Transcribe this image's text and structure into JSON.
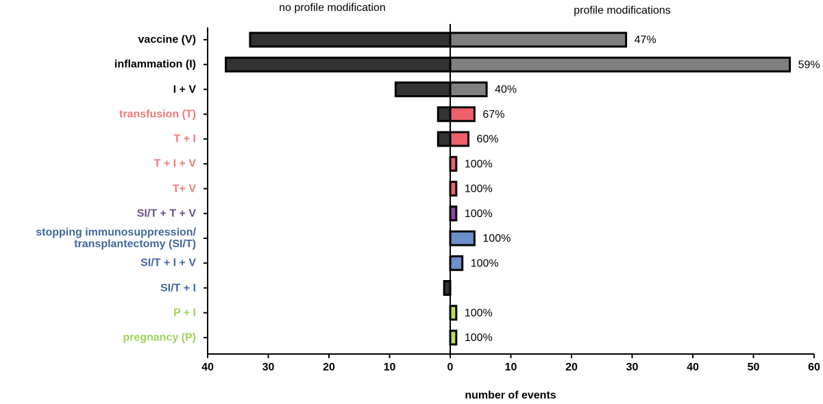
{
  "chart_data": {
    "type": "diverging_bar",
    "xlabel": "number of events",
    "categories": [
      "vaccine (V)",
      "inflammation (I)",
      "I + V",
      "transfusion (T)",
      "T + I",
      "T + I + V",
      "T+ V",
      "SI/T + T + V",
      "stopping immunosuppression/\ntransplantectomy (SI/T)",
      "SI/T + I + V",
      "SI/T + I",
      "P + I",
      "pregnancy (P)"
    ],
    "label_colors": [
      "#000000",
      "#000000",
      "#000000",
      "#f07a7a",
      "#f07a7a",
      "#f07a7a",
      "#f07a7a",
      "#6b4f8c",
      "#41689c",
      "#41689c",
      "#41689c",
      "#9fd25a",
      "#9fd25a"
    ],
    "series": [
      {
        "name": "no profile modification",
        "color": "#333333",
        "values": [
          -33,
          -37,
          -9,
          -2,
          -2,
          0,
          0,
          0,
          0,
          0,
          -1,
          0,
          0
        ]
      },
      {
        "name": "profile modifications",
        "colors": [
          "#808080",
          "#808080",
          "#808080",
          "#f0606a",
          "#f0606a",
          "#f0606a",
          "#f0606a",
          "#8e44a8",
          "#6b8fc8",
          "#6b8fc8",
          "#6b8fc8",
          "#b9e34c",
          "#b9e34c"
        ],
        "values": [
          29,
          56,
          6,
          4,
          3,
          1,
          1,
          1,
          4,
          2,
          0,
          1,
          1
        ],
        "percent_labels": [
          "47%",
          "59%",
          "40%",
          "67%",
          "60%",
          "100%",
          "100%",
          "100%",
          "100%",
          "100%",
          null,
          "100%",
          "100%"
        ]
      }
    ],
    "xlim": [
      -40,
      60
    ],
    "xticks": [
      {
        "value": -40,
        "label": "40"
      },
      {
        "value": -30,
        "label": "30"
      },
      {
        "value": -20,
        "label": "20"
      },
      {
        "value": -10,
        "label": "10"
      },
      0,
      10,
      20,
      30,
      40,
      50,
      60
    ]
  }
}
